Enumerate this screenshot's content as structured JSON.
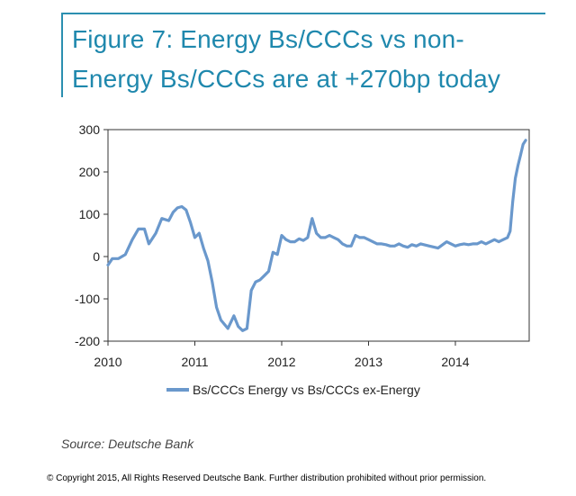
{
  "title_line1": "Figure 7: Energy Bs/CCCs vs non-",
  "title_line2": "Energy Bs/CCCs are at +270bp today",
  "source": "Source: Deutsche Bank",
  "copyright": "© Copyright 2015, All Rights Reserved Deutsche Bank. Further distribution prohibited without prior permission.",
  "accent_color": "#1f88ad",
  "chart_data": {
    "type": "line",
    "title": "",
    "xlabel": "",
    "ylabel": "",
    "xlim": [
      2010.0,
      2014.85
    ],
    "ylim": [
      -200,
      300
    ],
    "yticks": [
      300,
      200,
      100,
      0,
      -100,
      -200
    ],
    "yticklabels": [
      "300",
      "200",
      "100",
      "0",
      "-100",
      "-200"
    ],
    "xticks": [
      2010,
      2011,
      2012,
      2013,
      2014
    ],
    "xticklabels": [
      "2010",
      "2011",
      "2012",
      "2013",
      "2014"
    ],
    "grid": false,
    "legend_position": "bottom",
    "series": [
      {
        "name": "Bs/CCCs Energy vs Bs/CCCs ex-Energy",
        "color": "#6a98cc",
        "x": [
          2010.0,
          2010.05,
          2010.12,
          2010.2,
          2010.28,
          2010.35,
          2010.42,
          2010.47,
          2010.55,
          2010.62,
          2010.7,
          2010.75,
          2010.8,
          2010.85,
          2010.9,
          2010.95,
          2011.0,
          2011.05,
          2011.1,
          2011.15,
          2011.2,
          2011.25,
          2011.3,
          2011.38,
          2011.45,
          2011.5,
          2011.55,
          2011.6,
          2011.65,
          2011.7,
          2011.75,
          2011.8,
          2011.85,
          2011.9,
          2011.95,
          2012.0,
          2012.05,
          2012.1,
          2012.15,
          2012.2,
          2012.25,
          2012.3,
          2012.35,
          2012.4,
          2012.45,
          2012.5,
          2012.55,
          2012.6,
          2012.65,
          2012.7,
          2012.75,
          2012.8,
          2012.85,
          2012.9,
          2012.95,
          2013.0,
          2013.05,
          2013.1,
          2013.15,
          2013.2,
          2013.25,
          2013.3,
          2013.35,
          2013.4,
          2013.45,
          2013.5,
          2013.55,
          2013.6,
          2013.7,
          2013.8,
          2013.9,
          2014.0,
          2014.05,
          2014.1,
          2014.15,
          2014.2,
          2014.25,
          2014.3,
          2014.35,
          2014.4,
          2014.45,
          2014.5,
          2014.55,
          2014.6,
          2014.63,
          2014.66,
          2014.69,
          2014.72,
          2014.75,
          2014.78,
          2014.81
        ],
        "values": [
          -20,
          -5,
          -5,
          5,
          40,
          65,
          65,
          30,
          55,
          90,
          85,
          105,
          115,
          118,
          110,
          80,
          45,
          55,
          20,
          -10,
          -60,
          -120,
          -150,
          -170,
          -140,
          -165,
          -175,
          -170,
          -80,
          -60,
          -55,
          -45,
          -35,
          10,
          5,
          50,
          40,
          35,
          35,
          42,
          38,
          45,
          90,
          55,
          45,
          45,
          50,
          45,
          40,
          30,
          25,
          25,
          50,
          45,
          45,
          40,
          35,
          30,
          30,
          28,
          25,
          25,
          30,
          25,
          22,
          28,
          25,
          30,
          25,
          20,
          35,
          25,
          28,
          30,
          28,
          30,
          30,
          35,
          30,
          35,
          40,
          35,
          40,
          45,
          60,
          130,
          185,
          215,
          240,
          265,
          275
        ]
      }
    ]
  }
}
